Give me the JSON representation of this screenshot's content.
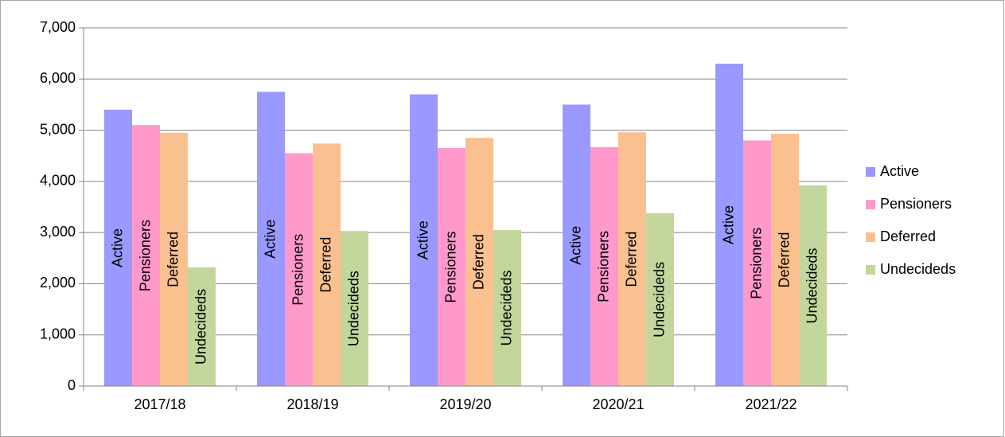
{
  "chart_data": {
    "type": "bar",
    "categories": [
      "2017/18",
      "2018/19",
      "2019/20",
      "2020/21",
      "2021/22"
    ],
    "series": [
      {
        "name": "Active",
        "color": "#9999ff",
        "values": [
          5400,
          5750,
          5700,
          5500,
          6300
        ]
      },
      {
        "name": "Pensioners",
        "color": "#ff99cc",
        "values": [
          5100,
          4550,
          4650,
          4670,
          4800
        ]
      },
      {
        "name": "Deferred",
        "color": "#fac090",
        "values": [
          4950,
          4740,
          4850,
          4960,
          4930
        ]
      },
      {
        "name": "Undecideds",
        "color": "#c3d69b",
        "values": [
          2320,
          3030,
          3050,
          3380,
          3920
        ]
      }
    ],
    "ylim": [
      0,
      7000
    ],
    "yticks": [
      0,
      {
        "value": 1000,
        "label": "1,000"
      },
      {
        "value": 2000,
        "label": "2,000"
      },
      {
        "value": 3000,
        "label": "3,000"
      },
      {
        "value": 4000,
        "label": "4,000"
      },
      {
        "value": 5000,
        "label": "5,000"
      },
      {
        "value": 6000,
        "label": "6,000"
      },
      {
        "value": 7000,
        "label": "7,000"
      }
    ],
    "grid": true,
    "legend": "right"
  }
}
